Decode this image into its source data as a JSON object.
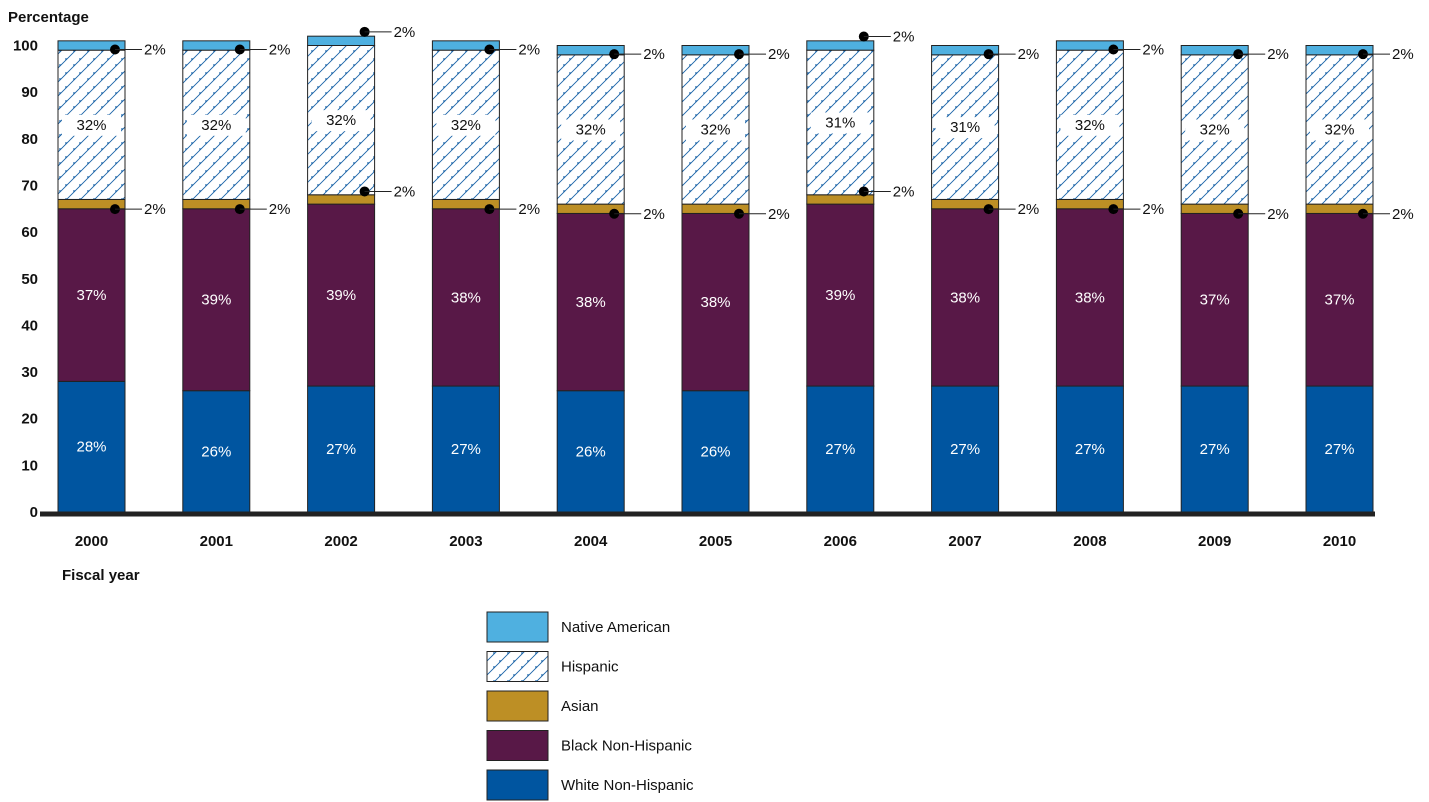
{
  "chart_data": {
    "type": "bar",
    "stacked": true,
    "ylabel": "Percentage",
    "xlabel": "Fiscal year",
    "ylim": [
      0,
      100
    ],
    "yticks": [
      0,
      10,
      20,
      30,
      40,
      50,
      60,
      70,
      80,
      90,
      100
    ],
    "categories": [
      "2000",
      "2001",
      "2002",
      "2003",
      "2004",
      "2005",
      "2006",
      "2007",
      "2008",
      "2009",
      "2010"
    ],
    "series": [
      {
        "name": "White Non-Hispanic",
        "color": "#0055a0",
        "pattern": "solid",
        "values": [
          28,
          26,
          27,
          27,
          26,
          26,
          27,
          27,
          27,
          27,
          27
        ]
      },
      {
        "name": "Black Non-Hispanic",
        "color": "#581847",
        "pattern": "solid",
        "values": [
          37,
          39,
          39,
          38,
          38,
          38,
          39,
          38,
          38,
          37,
          37
        ]
      },
      {
        "name": "Asian",
        "color": "#bd8f25",
        "pattern": "solid",
        "values": [
          2,
          2,
          2,
          2,
          2,
          2,
          2,
          2,
          2,
          2,
          2
        ]
      },
      {
        "name": "Hispanic",
        "color": "#ffffff",
        "pattern": "hatched",
        "values": [
          32,
          32,
          32,
          32,
          32,
          32,
          31,
          31,
          32,
          32,
          32
        ]
      },
      {
        "name": "Native American",
        "color": "#4fb0e0",
        "pattern": "solid",
        "values": [
          2,
          2,
          2,
          2,
          2,
          2,
          2,
          2,
          2,
          2,
          2
        ]
      }
    ],
    "legend": {
      "placement": "bottom-center",
      "order": [
        "Native American",
        "Hispanic",
        "Asian",
        "Black Non-Hispanic",
        "White Non-Hispanic"
      ]
    },
    "grid": false
  }
}
